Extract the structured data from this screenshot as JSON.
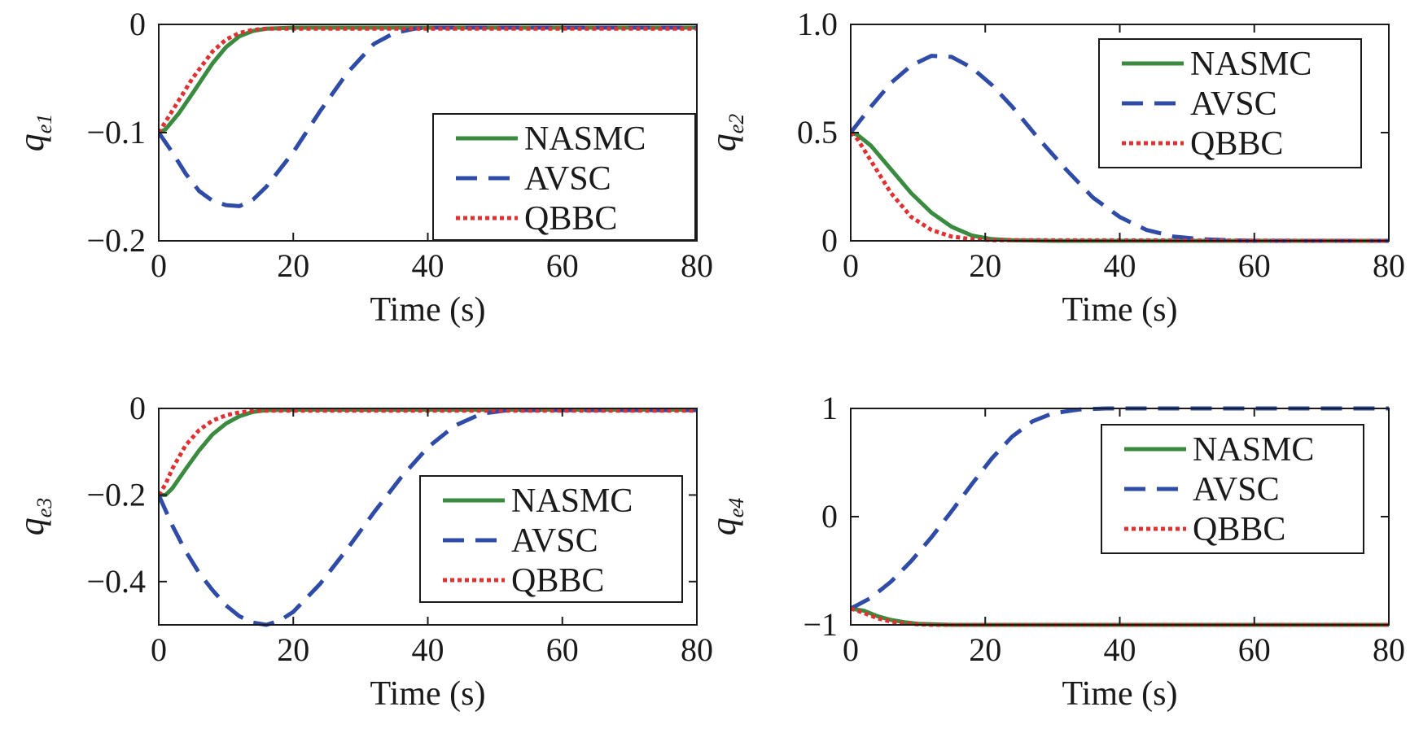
{
  "chart_data": [
    {
      "type": "line",
      "ylabel": "q",
      "ylabel_sub": "e1",
      "xlabel": "Time (s)",
      "xlim": [
        0,
        80
      ],
      "ylim": [
        -0.2,
        0
      ],
      "xticks": [
        0,
        20,
        40,
        60,
        80
      ],
      "xtick_labels": [
        "0",
        "20",
        "40",
        "60",
        "80"
      ],
      "yticks": [
        -0.2,
        -0.1,
        0
      ],
      "ytick_labels": [
        "−0.2",
        "−0.1",
        "0"
      ],
      "legend_position": "bottom-right",
      "series": [
        {
          "name": "NASMC",
          "color": "#3a8a3f",
          "style": "solid",
          "x": [
            0,
            1,
            3,
            5,
            8,
            10,
            12,
            14,
            16,
            20,
            30,
            80
          ],
          "y": [
            -0.1,
            -0.097,
            -0.082,
            -0.064,
            -0.036,
            -0.021,
            -0.011,
            -0.006,
            -0.004,
            -0.003,
            -0.003,
            -0.003
          ]
        },
        {
          "name": "AVSC",
          "color": "#2f4ba8",
          "style": "dashed",
          "x": [
            0,
            2,
            4,
            6,
            8,
            10,
            12,
            14,
            16,
            20,
            24,
            28,
            32,
            35,
            38,
            40,
            45,
            80
          ],
          "y": [
            -0.1,
            -0.118,
            -0.138,
            -0.154,
            -0.163,
            -0.167,
            -0.168,
            -0.162,
            -0.15,
            -0.118,
            -0.08,
            -0.045,
            -0.018,
            -0.008,
            -0.004,
            -0.003,
            -0.003,
            -0.003
          ]
        },
        {
          "name": "QBBC",
          "color": "#e03030",
          "style": "dotted",
          "x": [
            0,
            1,
            3,
            5,
            8,
            10,
            12,
            14,
            16,
            20,
            80
          ],
          "y": [
            -0.1,
            -0.09,
            -0.07,
            -0.05,
            -0.025,
            -0.014,
            -0.008,
            -0.005,
            -0.004,
            -0.004,
            -0.004
          ]
        }
      ]
    },
    {
      "type": "line",
      "ylabel": "q",
      "ylabel_sub": "e2",
      "xlabel": "Time (s)",
      "xlim": [
        0,
        80
      ],
      "ylim": [
        0,
        1
      ],
      "xticks": [
        0,
        20,
        40,
        60,
        80
      ],
      "xtick_labels": [
        "0",
        "20",
        "40",
        "60",
        "80"
      ],
      "yticks": [
        0,
        0.5,
        1
      ],
      "ytick_labels": [
        "0",
        "0.5",
        "1.0"
      ],
      "legend_position": "top-right",
      "series": [
        {
          "name": "NASMC",
          "color": "#3a8a3f",
          "style": "solid",
          "x": [
            0,
            1,
            3,
            6,
            9,
            12,
            15,
            18,
            21,
            24,
            30,
            80
          ],
          "y": [
            0.5,
            0.49,
            0.44,
            0.33,
            0.22,
            0.13,
            0.065,
            0.025,
            0.008,
            0.003,
            0.0,
            0.0
          ]
        },
        {
          "name": "AVSC",
          "color": "#2f4ba8",
          "style": "dashed",
          "x": [
            0,
            3,
            6,
            9,
            12,
            15,
            18,
            21,
            24,
            28,
            32,
            36,
            40,
            44,
            48,
            52,
            56,
            60,
            80
          ],
          "y": [
            0.5,
            0.62,
            0.73,
            0.81,
            0.855,
            0.85,
            0.8,
            0.72,
            0.62,
            0.47,
            0.33,
            0.2,
            0.11,
            0.05,
            0.02,
            0.008,
            0.003,
            0.0,
            0.0
          ]
        },
        {
          "name": "QBBC",
          "color": "#e03030",
          "style": "dotted",
          "x": [
            0,
            1,
            3,
            6,
            9,
            12,
            15,
            18,
            21,
            80
          ],
          "y": [
            0.5,
            0.47,
            0.37,
            0.22,
            0.11,
            0.05,
            0.02,
            0.008,
            0.003,
            0.0
          ]
        }
      ]
    },
    {
      "type": "line",
      "ylabel": "q",
      "ylabel_sub": "e3",
      "xlabel": "Time (s)",
      "xlim": [
        0,
        80
      ],
      "ylim": [
        -0.5,
        0
      ],
      "xticks": [
        0,
        20,
        40,
        60,
        80
      ],
      "xtick_labels": [
        "0",
        "20",
        "40",
        "60",
        "80"
      ],
      "yticks": [
        -0.4,
        -0.2,
        0
      ],
      "ytick_labels": [
        "−0.4",
        "−0.2",
        "0"
      ],
      "legend_position": "bottom-right",
      "series": [
        {
          "name": "NASMC",
          "color": "#3a8a3f",
          "style": "solid",
          "x": [
            0,
            1,
            2,
            4,
            6,
            8,
            10,
            12,
            14,
            16,
            20,
            80
          ],
          "y": [
            -0.2,
            -0.2,
            -0.185,
            -0.14,
            -0.097,
            -0.06,
            -0.035,
            -0.018,
            -0.008,
            -0.004,
            -0.003,
            -0.003
          ]
        },
        {
          "name": "AVSC",
          "color": "#2f4ba8",
          "style": "dashed",
          "x": [
            0,
            2,
            4,
            6,
            8,
            10,
            12,
            14,
            16,
            18,
            20,
            24,
            28,
            32,
            36,
            40,
            44,
            48,
            52,
            80
          ],
          "y": [
            -0.2,
            -0.27,
            -0.33,
            -0.38,
            -0.42,
            -0.455,
            -0.48,
            -0.495,
            -0.5,
            -0.49,
            -0.47,
            -0.405,
            -0.325,
            -0.24,
            -0.16,
            -0.09,
            -0.04,
            -0.012,
            -0.004,
            -0.004
          ]
        },
        {
          "name": "QBBC",
          "color": "#e03030",
          "style": "dotted",
          "x": [
            0,
            1,
            2,
            4,
            6,
            8,
            10,
            12,
            14,
            16,
            80
          ],
          "y": [
            -0.2,
            -0.175,
            -0.14,
            -0.085,
            -0.05,
            -0.028,
            -0.016,
            -0.009,
            -0.006,
            -0.005,
            -0.005
          ]
        }
      ]
    },
    {
      "type": "line",
      "ylabel": "q",
      "ylabel_sub": "e4",
      "xlabel": "Time (s)",
      "xlim": [
        0,
        80
      ],
      "ylim": [
        -1,
        1
      ],
      "xticks": [
        0,
        20,
        40,
        60,
        80
      ],
      "xtick_labels": [
        "0",
        "20",
        "40",
        "60",
        "80"
      ],
      "yticks": [
        -1,
        0,
        1
      ],
      "ytick_labels": [
        "−1",
        "0",
        "1"
      ],
      "legend_position": "top-right",
      "series": [
        {
          "name": "NASMC",
          "color": "#3a8a3f",
          "style": "solid",
          "x": [
            0,
            2,
            4,
            6,
            8,
            10,
            12,
            15,
            20,
            80
          ],
          "y": [
            -0.85,
            -0.87,
            -0.92,
            -0.955,
            -0.975,
            -0.99,
            -0.995,
            -1.0,
            -1.0,
            -1.0
          ]
        },
        {
          "name": "AVSC",
          "color": "#2f4ba8",
          "style": "dashed",
          "x": [
            0,
            3,
            6,
            9,
            12,
            15,
            18,
            21,
            24,
            27,
            30,
            34,
            38,
            42,
            80
          ],
          "y": [
            -0.85,
            -0.75,
            -0.6,
            -0.41,
            -0.19,
            0.05,
            0.3,
            0.54,
            0.74,
            0.88,
            0.955,
            0.99,
            1.0,
            1.0,
            1.0
          ]
        },
        {
          "name": "QBBC",
          "color": "#e03030",
          "style": "dotted",
          "x": [
            0,
            2,
            4,
            6,
            8,
            10,
            12,
            15,
            80
          ],
          "y": [
            -0.85,
            -0.89,
            -0.94,
            -0.97,
            -0.985,
            -0.995,
            -1.0,
            -1.0,
            -1.0
          ]
        }
      ]
    }
  ]
}
